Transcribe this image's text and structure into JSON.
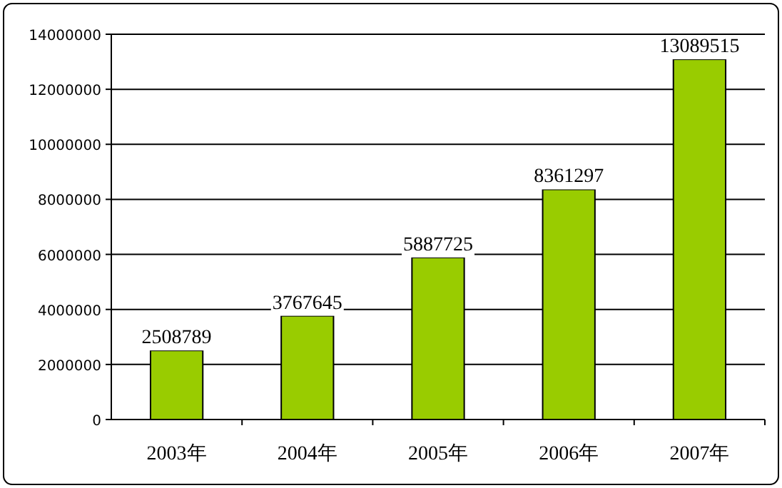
{
  "chart_data": {
    "type": "bar",
    "categories": [
      "2003年",
      "2004年",
      "2005年",
      "2006年",
      "2007年"
    ],
    "values": [
      2508789,
      3767645,
      5887725,
      8361297,
      13089515
    ],
    "color": "#99cc00",
    "ylim": [
      0,
      14000000
    ],
    "yticks": [
      0,
      2000000,
      4000000,
      6000000,
      8000000,
      10000000,
      12000000,
      14000000
    ],
    "grid": "y",
    "data_labels": true
  }
}
